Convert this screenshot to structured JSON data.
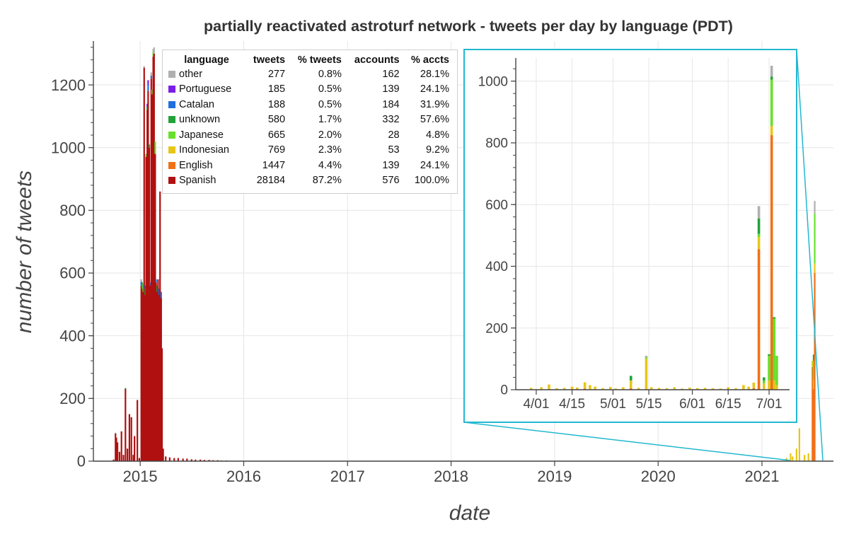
{
  "chart_data": [
    {
      "type": "bar",
      "stacked": true,
      "title": "partially reactivated astroturf network - tweets per day by language (PDT)",
      "xlabel": "date",
      "ylabel": "number of tweets",
      "x_ticks": [
        "2015",
        "2016",
        "2017",
        "2018",
        "2019",
        "2020",
        "2021"
      ],
      "y_ticks": [
        0,
        200,
        400,
        600,
        800,
        1000,
        1200
      ],
      "xlim": [
        "2014-07-20",
        "2021-09-10"
      ],
      "ylim": [
        0,
        1340
      ],
      "grid": true,
      "legend": {
        "placement": "top-left",
        "columns": [
          "language",
          "tweets",
          "% tweets",
          "accounts",
          "% accts"
        ],
        "rows": [
          {
            "language": "other",
            "tweets": "277",
            "pct_tweets": "0.8%",
            "accounts": "162",
            "pct_accts": "28.1%",
            "color": "#b0b0b0"
          },
          {
            "language": "Portuguese",
            "tweets": "185",
            "pct_tweets": "0.5%",
            "accounts": "139",
            "pct_accts": "24.1%",
            "color": "#7a1fe8"
          },
          {
            "language": "Catalan",
            "tweets": "188",
            "pct_tweets": "0.5%",
            "accounts": "184",
            "pct_accts": "31.9%",
            "color": "#1f6fe0"
          },
          {
            "language": "unknown",
            "tweets": "580",
            "pct_tweets": "1.7%",
            "accounts": "332",
            "pct_accts": "57.6%",
            "color": "#23a23a"
          },
          {
            "language": "Japanese",
            "tweets": "665",
            "pct_tweets": "2.0%",
            "accounts": "28",
            "pct_accts": "4.8%",
            "color": "#66e02a"
          },
          {
            "language": "Indonesian",
            "tweets": "769",
            "pct_tweets": "2.3%",
            "accounts": "53",
            "pct_accts": "9.2%",
            "color": "#e6c619"
          },
          {
            "language": "English",
            "tweets": "1447",
            "pct_tweets": "4.4%",
            "accounts": "139",
            "pct_accts": "24.1%",
            "color": "#f07018"
          },
          {
            "language": "Spanish",
            "tweets": "28184",
            "pct_tweets": "87.2%",
            "accounts": "576",
            "pct_accts": "100.0%",
            "color": "#b01010"
          }
        ]
      },
      "bars": [
        {
          "date": "2014-09-29",
          "values": {
            "Spanish": 5
          }
        },
        {
          "date": "2014-10-06",
          "values": {
            "Spanish": 88,
            "other": 3
          }
        },
        {
          "date": "2014-10-09",
          "values": {
            "Spanish": 75
          }
        },
        {
          "date": "2014-10-13",
          "values": {
            "Spanish": 60
          }
        },
        {
          "date": "2014-10-20",
          "values": {
            "Spanish": 30
          }
        },
        {
          "date": "2014-10-27",
          "values": {
            "Spanish": 95
          }
        },
        {
          "date": "2014-11-03",
          "values": {
            "Spanish": 20
          }
        },
        {
          "date": "2014-11-10",
          "values": {
            "Spanish": 230,
            "unknown": 3
          }
        },
        {
          "date": "2014-11-17",
          "values": {
            "Spanish": 40
          }
        },
        {
          "date": "2014-11-24",
          "values": {
            "Spanish": 150
          }
        },
        {
          "date": "2014-12-01",
          "values": {
            "Spanish": 140
          }
        },
        {
          "date": "2014-12-08",
          "values": {
            "Spanish": 20
          }
        },
        {
          "date": "2014-12-12",
          "values": {
            "Spanish": 80
          }
        },
        {
          "date": "2014-12-22",
          "values": {
            "Spanish": 195
          }
        },
        {
          "date": "2014-12-29",
          "values": {
            "Spanish": 10
          }
        },
        {
          "date": "2015-01-05",
          "values": {
            "Spanish": 560,
            "Catalan": 12,
            "other": 8
          }
        },
        {
          "date": "2015-01-08",
          "values": {
            "Spanish": 550,
            "unknown": 20
          }
        },
        {
          "date": "2015-01-12",
          "values": {
            "Spanish": 540,
            "Japanese": 20,
            "other": 5
          }
        },
        {
          "date": "2015-01-15",
          "values": {
            "Spanish": 1255,
            "other": 5
          }
        },
        {
          "date": "2015-01-19",
          "values": {
            "Spanish": 530,
            "unknown": 20,
            "Catalan": 10
          }
        },
        {
          "date": "2015-01-22",
          "values": {
            "Spanish": 970,
            "Japanese": 10
          }
        },
        {
          "date": "2015-01-26",
          "values": {
            "Spanish": 1120,
            "unknown": 10,
            "Portuguese": 10
          }
        },
        {
          "date": "2015-01-29",
          "values": {
            "Spanish": 1180,
            "Catalan": 20,
            "Portuguese": 15
          }
        },
        {
          "date": "2015-02-02",
          "values": {
            "Spanish": 1000,
            "unknown": 10
          }
        },
        {
          "date": "2015-02-05",
          "values": {
            "Spanish": 560,
            "Catalan": 10
          }
        },
        {
          "date": "2015-02-09",
          "values": {
            "Spanish": 1220,
            "Catalan": 10,
            "other": 10
          }
        },
        {
          "date": "2015-02-12",
          "values": {
            "Spanish": 1170,
            "Japanese": 15
          }
        },
        {
          "date": "2015-02-16",
          "values": {
            "Spanish": 1290,
            "Japanese": 15,
            "other": 10
          }
        },
        {
          "date": "2015-02-19",
          "values": {
            "Spanish": 1300,
            "other": 20
          }
        },
        {
          "date": "2015-02-23",
          "values": {
            "Spanish": 980,
            "Japanese": 40
          }
        },
        {
          "date": "2015-02-26",
          "values": {
            "Spanish": 570,
            "Catalan": 10
          }
        },
        {
          "date": "2015-03-02",
          "values": {
            "Spanish": 540,
            "unknown": 20
          }
        },
        {
          "date": "2015-03-05",
          "values": {
            "Spanish": 580
          }
        },
        {
          "date": "2015-03-09",
          "values": {
            "Spanish": 530,
            "Catalan": 20
          }
        },
        {
          "date": "2015-03-12",
          "values": {
            "Spanish": 860
          }
        },
        {
          "date": "2015-03-16",
          "values": {
            "Spanish": 520,
            "Catalan": 20
          }
        },
        {
          "date": "2015-03-19",
          "values": {
            "Spanish": 360
          }
        },
        {
          "date": "2015-03-23",
          "values": {
            "Spanish": 40
          }
        },
        {
          "date": "2015-04-01",
          "values": {
            "Spanish": 15
          }
        },
        {
          "date": "2015-04-15",
          "values": {
            "Spanish": 12
          }
        },
        {
          "date": "2015-05-01",
          "values": {
            "Spanish": 10
          }
        },
        {
          "date": "2015-05-15",
          "values": {
            "Spanish": 10
          }
        },
        {
          "date": "2015-06-01",
          "values": {
            "Spanish": 8
          }
        },
        {
          "date": "2015-06-15",
          "values": {
            "Spanish": 8
          }
        },
        {
          "date": "2015-07-01",
          "values": {
            "Spanish": 6
          }
        },
        {
          "date": "2015-07-15",
          "values": {
            "Spanish": 5
          }
        },
        {
          "date": "2015-08-01",
          "values": {
            "Spanish": 5
          }
        },
        {
          "date": "2015-08-15",
          "values": {
            "Spanish": 4
          }
        },
        {
          "date": "2015-09-01",
          "values": {
            "Spanish": 4
          }
        },
        {
          "date": "2015-09-15",
          "values": {
            "Spanish": 3
          }
        },
        {
          "date": "2015-10-01",
          "values": {
            "Spanish": 3
          }
        },
        {
          "date": "2015-10-15",
          "values": {
            "Spanish": 2
          }
        },
        {
          "date": "2015-11-01",
          "values": {
            "Spanish": 2
          }
        },
        {
          "date": "2021-03-29",
          "values": {
            "Indonesian": 10
          }
        },
        {
          "date": "2021-04-12",
          "values": {
            "Indonesian": 25
          }
        },
        {
          "date": "2021-04-19",
          "values": {
            "Indonesian": 15
          }
        },
        {
          "date": "2021-05-03",
          "values": {
            "Indonesian": 40
          }
        },
        {
          "date": "2021-05-13",
          "values": {
            "Indonesian": 105
          }
        },
        {
          "date": "2021-05-31",
          "values": {
            "Indonesian": 20
          }
        },
        {
          "date": "2021-06-14",
          "values": {
            "Indonesian": 25
          }
        },
        {
          "date": "2021-06-28",
          "values": {
            "English": 300,
            "Indonesian": 20
          }
        },
        {
          "date": "2021-07-02",
          "values": {
            "English": 230,
            "Indonesian": 30,
            "unknown": 20,
            "Japanese": 60
          }
        },
        {
          "date": "2021-07-06",
          "values": {
            "English": 600,
            "Indonesian": 30,
            "Japanese": 160,
            "other": 40
          }
        }
      ]
    },
    {
      "type": "bar",
      "stacked": true,
      "role": "inset zoom",
      "x_ticks": [
        "4/01",
        "4/15",
        "5/01",
        "5/15",
        "6/01",
        "6/15",
        "7/01"
      ],
      "y_ticks": [
        0,
        200,
        400,
        600,
        800,
        1000
      ],
      "xlim": [
        "2021-03-24",
        "2021-07-09"
      ],
      "ylim": [
        0,
        1075
      ],
      "grid": true,
      "bars": [
        {
          "date": "2021-03-30",
          "values": {
            "Indonesian": 6
          }
        },
        {
          "date": "2021-04-03",
          "values": {
            "Indonesian": 8
          }
        },
        {
          "date": "2021-04-06",
          "values": {
            "Indonesian": 17
          }
        },
        {
          "date": "2021-04-09",
          "values": {
            "Indonesian": 5
          }
        },
        {
          "date": "2021-04-12",
          "values": {
            "Indonesian": 6
          }
        },
        {
          "date": "2021-04-15",
          "values": {
            "Indonesian": 10
          }
        },
        {
          "date": "2021-04-17",
          "values": {
            "Indonesian": 7
          }
        },
        {
          "date": "2021-04-20",
          "values": {
            "Indonesian": 20,
            "English": 4
          }
        },
        {
          "date": "2021-04-22",
          "values": {
            "Indonesian": 15
          }
        },
        {
          "date": "2021-04-24",
          "values": {
            "Indonesian": 10
          }
        },
        {
          "date": "2021-04-27",
          "values": {
            "Indonesian": 5
          }
        },
        {
          "date": "2021-04-30",
          "values": {
            "Indonesian": 9
          }
        },
        {
          "date": "2021-05-02",
          "values": {
            "Indonesian": 4
          }
        },
        {
          "date": "2021-05-05",
          "values": {
            "Indonesian": 8
          }
        },
        {
          "date": "2021-05-08",
          "values": {
            "Indonesian": 25,
            "unknown": 15,
            "English": 5
          }
        },
        {
          "date": "2021-05-11",
          "values": {
            "Indonesian": 6
          }
        },
        {
          "date": "2021-05-14",
          "values": {
            "Indonesian": 100,
            "Japanese": 5,
            "other": 5
          }
        },
        {
          "date": "2021-05-16",
          "values": {
            "Indonesian": 8
          }
        },
        {
          "date": "2021-05-19",
          "values": {
            "Indonesian": 6
          }
        },
        {
          "date": "2021-05-22",
          "values": {
            "Indonesian": 5
          }
        },
        {
          "date": "2021-05-25",
          "values": {
            "Indonesian": 8
          }
        },
        {
          "date": "2021-05-28",
          "values": {
            "Indonesian": 4
          }
        },
        {
          "date": "2021-05-31",
          "values": {
            "Indonesian": 7
          }
        },
        {
          "date": "2021-06-03",
          "values": {
            "Indonesian": 5
          }
        },
        {
          "date": "2021-06-06",
          "values": {
            "Indonesian": 6
          }
        },
        {
          "date": "2021-06-09",
          "values": {
            "Indonesian": 5
          }
        },
        {
          "date": "2021-06-12",
          "values": {
            "Indonesian": 4
          }
        },
        {
          "date": "2021-06-15",
          "values": {
            "Indonesian": 8
          }
        },
        {
          "date": "2021-06-18",
          "values": {
            "Indonesian": 5
          }
        },
        {
          "date": "2021-06-21",
          "values": {
            "Indonesian": 15
          }
        },
        {
          "date": "2021-06-23",
          "values": {
            "Indonesian": 10
          }
        },
        {
          "date": "2021-06-25",
          "values": {
            "Indonesian": 18,
            "English": 5
          }
        },
        {
          "date": "2021-06-27",
          "values": {
            "English": 455,
            "Indonesian": 40,
            "unknown": 50,
            "Japanese": 10,
            "other": 40
          }
        },
        {
          "date": "2021-06-29",
          "values": {
            "Indonesian": 20,
            "unknown": 10,
            "Japanese": 10
          }
        },
        {
          "date": "2021-07-01",
          "values": {
            "Indonesian": 30,
            "unknown": 5,
            "Japanese": 80
          }
        },
        {
          "date": "2021-07-02",
          "values": {
            "English": 825,
            "Indonesian": 30,
            "unknown": 10,
            "Japanese": 150,
            "other": 35
          }
        },
        {
          "date": "2021-07-03",
          "values": {
            "Indonesian": 30,
            "Japanese": 200,
            "unknown": 5
          }
        },
        {
          "date": "2021-07-04",
          "values": {
            "Indonesian": 15,
            "Japanese": 95
          }
        }
      ]
    }
  ]
}
